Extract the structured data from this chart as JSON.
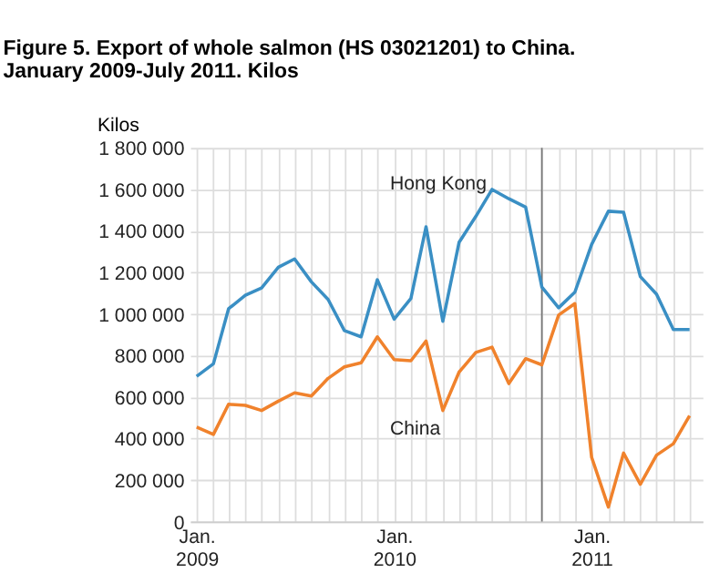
{
  "chart_data": {
    "type": "line",
    "title": "Figure 5. Export of whole salmon (HS 03021201) to China.",
    "subtitle": "January 2009-July 2011. Kilos",
    "ylabel": "Kilos",
    "x": [
      "2009-01",
      "2009-02",
      "2009-03",
      "2009-04",
      "2009-05",
      "2009-06",
      "2009-07",
      "2009-08",
      "2009-09",
      "2009-10",
      "2009-11",
      "2009-12",
      "2010-01",
      "2010-02",
      "2010-03",
      "2010-04",
      "2010-05",
      "2010-06",
      "2010-07",
      "2010-08",
      "2010-09",
      "2010-10",
      "2010-11",
      "2010-12",
      "2011-01",
      "2011-02",
      "2011-03",
      "2011-04",
      "2011-05",
      "2011-06",
      "2011-07"
    ],
    "series": [
      {
        "name": "Hong Kong",
        "color": "#3a8fc4",
        "values": [
          700000,
          760000,
          1025000,
          1090000,
          1125000,
          1225000,
          1265000,
          1155000,
          1070000,
          920000,
          890000,
          1165000,
          975000,
          1075000,
          1420000,
          965000,
          1345000,
          1470000,
          1600000,
          1555000,
          1515000,
          1130000,
          1030000,
          1105000,
          1335000,
          1495000,
          1490000,
          1180000,
          1095000,
          925000,
          925000
        ]
      },
      {
        "name": "China",
        "color": "#f0822c",
        "values": [
          455000,
          420000,
          565000,
          560000,
          535000,
          580000,
          620000,
          605000,
          690000,
          745000,
          765000,
          890000,
          780000,
          775000,
          870000,
          535000,
          720000,
          815000,
          840000,
          665000,
          785000,
          755000,
          995000,
          1050000,
          310000,
          70000,
          330000,
          180000,
          320000,
          375000,
          510000
        ]
      }
    ],
    "xlim": [
      "2008-12-20",
      "2011-07-25"
    ],
    "xticks": [
      {
        "value": "2009-01",
        "label": "Jan. 2009"
      },
      {
        "value": "2009-02",
        "label": null
      },
      {
        "value": "2009-03",
        "label": null
      },
      {
        "value": "2009-04",
        "label": null
      },
      {
        "value": "2009-05",
        "label": null
      },
      {
        "value": "2009-06",
        "label": null
      },
      {
        "value": "2009-07",
        "label": null
      },
      {
        "value": "2009-08",
        "label": null
      },
      {
        "value": "2009-09",
        "label": null
      },
      {
        "value": "2009-10",
        "label": null
      },
      {
        "value": "2009-11",
        "label": null
      },
      {
        "value": "2009-12",
        "label": null
      },
      {
        "value": "2010-01",
        "label": "Jan. 2010"
      },
      {
        "value": "2010-02",
        "label": null
      },
      {
        "value": "2010-03",
        "label": null
      },
      {
        "value": "2010-04",
        "label": null
      },
      {
        "value": "2010-05",
        "label": null
      },
      {
        "value": "2010-06",
        "label": null
      },
      {
        "value": "2010-07",
        "label": null
      },
      {
        "value": "2010-08",
        "label": null
      },
      {
        "value": "2010-09",
        "label": null
      },
      {
        "value": "2010-10",
        "label": null
      },
      {
        "value": "2010-11",
        "label": null
      },
      {
        "value": "2010-12",
        "label": null
      },
      {
        "value": "2011-01",
        "label": "Jan. 2011"
      },
      {
        "value": "2011-02",
        "label": null
      },
      {
        "value": "2011-03",
        "label": null
      },
      {
        "value": "2011-04",
        "label": null
      },
      {
        "value": "2011-05",
        "label": null
      },
      {
        "value": "2011-06",
        "label": null
      },
      {
        "value": "2011-07",
        "label": null
      }
    ],
    "ylim": [
      0,
      1800000
    ],
    "yticks": [
      {
        "value": 0,
        "label": "0"
      },
      {
        "value": 200000,
        "label": "200 000"
      },
      {
        "value": 400000,
        "label": "400 000"
      },
      {
        "value": 600000,
        "label": "600 000"
      },
      {
        "value": 800000,
        "label": "800 000"
      },
      {
        "value": 1000000,
        "label": "1 000 000"
      },
      {
        "value": 1200000,
        "label": "1 200 000"
      },
      {
        "value": 1400000,
        "label": "1 400 000"
      },
      {
        "value": 1600000,
        "label": "1 600 000"
      },
      {
        "value": 1800000,
        "label": "1 800 000"
      }
    ],
    "ref_lines": [
      {
        "axis": "x",
        "value": "2010-10",
        "label": null,
        "color": "#777777"
      }
    ],
    "grid": true,
    "legend": false,
    "marker": "none",
    "line_style": "solid"
  }
}
